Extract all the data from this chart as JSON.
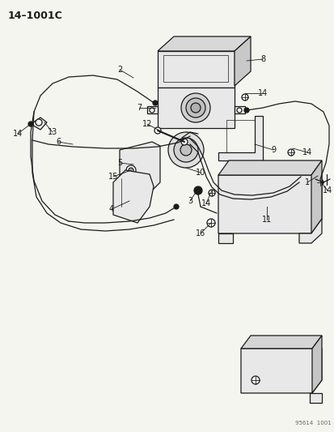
{
  "title": "14–1001C",
  "bg_color": "#f5f5f0",
  "line_color": "#1a1a1a",
  "fig_width": 4.14,
  "fig_height": 5.33,
  "watermark": "95614  1001"
}
